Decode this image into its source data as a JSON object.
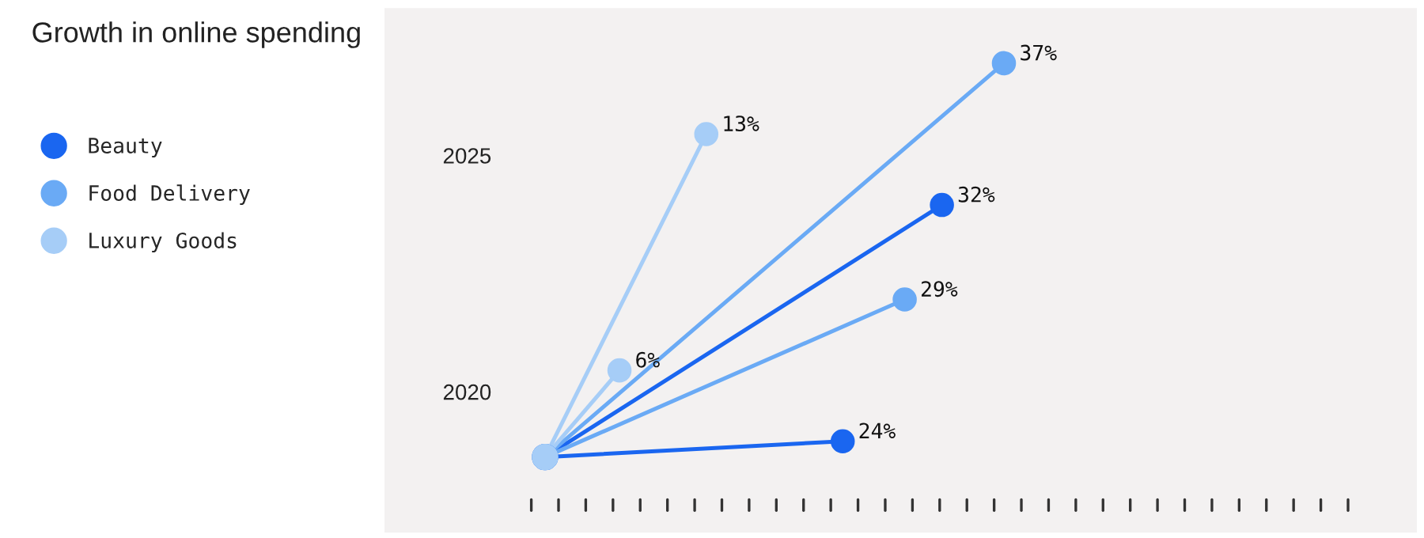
{
  "chart_data": {
    "type": "other",
    "title": "Growth in online spending",
    "categories": [
      "2020",
      "2025"
    ],
    "series": [
      {
        "name": "Beauty",
        "color": "#1a66f0",
        "values": [
          24,
          32
        ],
        "value_labels": [
          "24%",
          "32%"
        ]
      },
      {
        "name": "Food Delivery",
        "color": "#6aaaf5",
        "values": [
          29,
          37
        ],
        "value_labels": [
          "29%",
          "37%"
        ]
      },
      {
        "name": "Luxury Goods",
        "color": "#a6cdf7",
        "values": [
          6,
          13
        ],
        "value_labels": [
          "6%",
          "13%"
        ]
      }
    ],
    "legend": "left"
  }
}
